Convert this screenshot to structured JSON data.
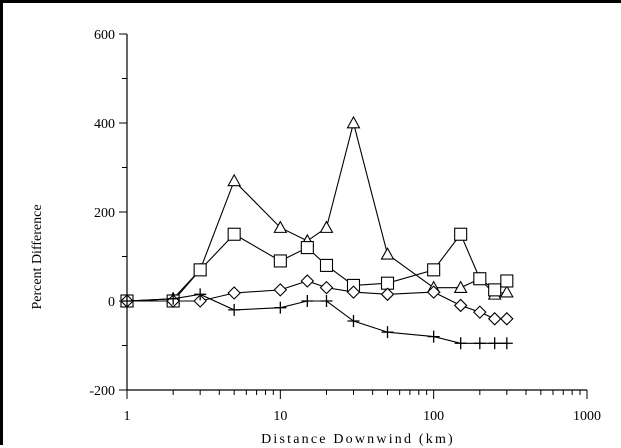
{
  "chart_data": {
    "type": "line",
    "xlabel": "Distance Downwind (km)",
    "ylabel": "Percent Difference",
    "x_scale": "log",
    "xlim": [
      1,
      1000
    ],
    "ylim": [
      -200,
      600
    ],
    "x_ticks": [
      "1",
      "10",
      "100",
      "1000"
    ],
    "y_ticks": [
      "-200",
      "0",
      "200",
      "400",
      "600"
    ],
    "grid": false,
    "legend": "none",
    "series": [
      {
        "marker": "triangle",
        "x": [
          1,
          2,
          3,
          5,
          10,
          15,
          20,
          30,
          50,
          100,
          150,
          200,
          250,
          300
        ],
        "y": [
          0,
          5,
          70,
          270,
          165,
          135,
          165,
          400,
          105,
          30,
          30,
          50,
          15,
          20
        ]
      },
      {
        "marker": "square",
        "x": [
          1,
          2,
          3,
          5,
          10,
          15,
          20,
          30,
          50,
          100,
          150,
          200,
          250,
          300
        ],
        "y": [
          0,
          0,
          70,
          150,
          90,
          120,
          80,
          35,
          40,
          70,
          150,
          50,
          25,
          45
        ]
      },
      {
        "marker": "diamond",
        "x": [
          1,
          2,
          3,
          5,
          10,
          15,
          20,
          30,
          50,
          100,
          150,
          200,
          250,
          300
        ],
        "y": [
          0,
          0,
          0,
          18,
          25,
          45,
          30,
          20,
          15,
          20,
          -10,
          -25,
          -40,
          -40
        ]
      },
      {
        "marker": "plus",
        "x": [
          1,
          2,
          3,
          5,
          10,
          15,
          20,
          30,
          50,
          100,
          150,
          200,
          250,
          300
        ],
        "y": [
          0,
          5,
          15,
          -20,
          -15,
          0,
          0,
          -45,
          -70,
          -80,
          -95,
          -95,
          -95,
          -95
        ]
      }
    ]
  }
}
